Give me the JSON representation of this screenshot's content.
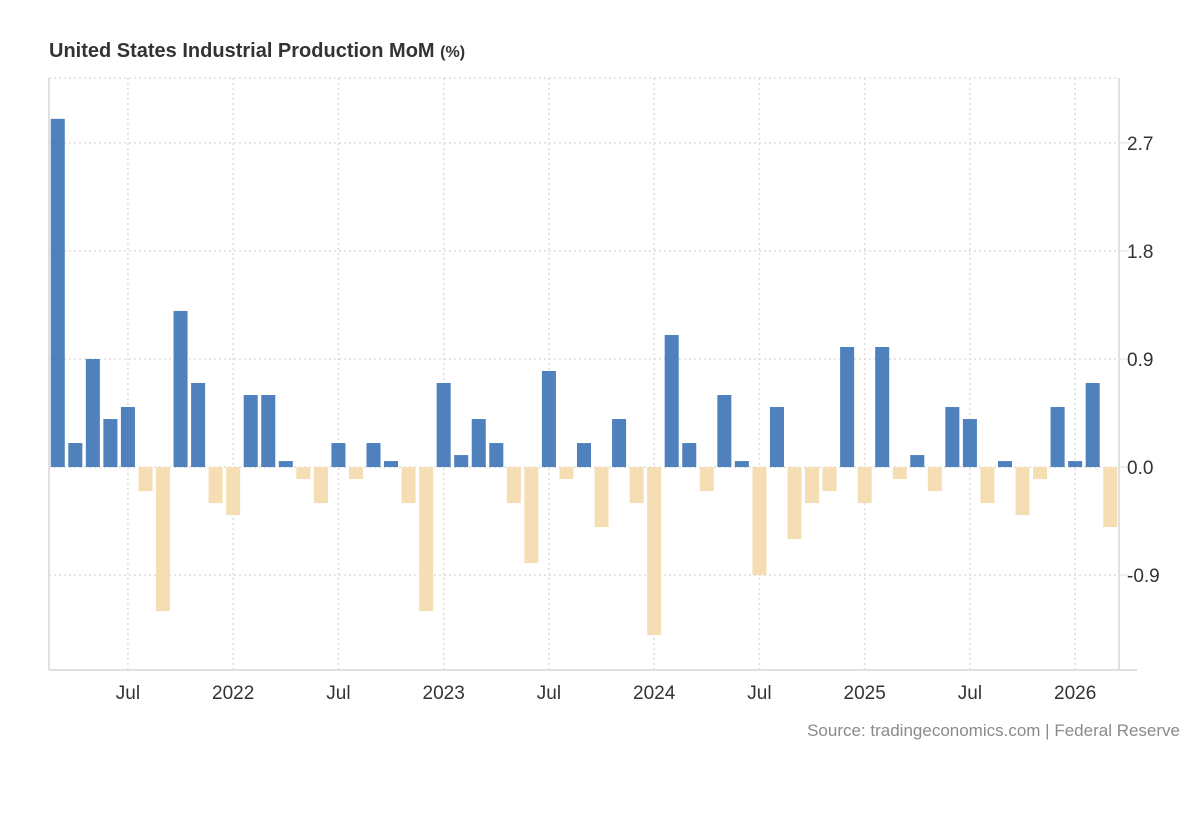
{
  "title": "United States Industrial Production MoM",
  "title_unit": "(%)",
  "source": "Source: tradingeconomics.com | Federal Reserve",
  "colors": {
    "positive": "#4f81bd",
    "negative": "#f5deb3",
    "grid": "#dddddd",
    "axis": "#e0e0e0",
    "text": "#333333"
  },
  "chart_data": {
    "type": "bar",
    "title": "United States Industrial Production MoM (%)",
    "xlabel": "",
    "ylabel": "",
    "ylim": [
      -1.69,
      3.24
    ],
    "y_ticks": [
      2.7,
      1.8,
      0.9,
      0.0,
      -0.9
    ],
    "y_tick_labels": [
      "2.7",
      "1.8",
      "0.9",
      "0.0",
      "-0.9"
    ],
    "y_axis_position": "right",
    "grid": true,
    "legend": "none",
    "x_tick_labels": [
      {
        "month": "2021-07",
        "label": "Jul"
      },
      {
        "month": "2022-01",
        "label": "2022"
      },
      {
        "month": "2022-07",
        "label": "Jul"
      },
      {
        "month": "2023-01",
        "label": "2023"
      },
      {
        "month": "2023-07",
        "label": "Jul"
      },
      {
        "month": "2024-01",
        "label": "2024"
      },
      {
        "month": "2024-07",
        "label": "Jul"
      },
      {
        "month": "2025-01",
        "label": "2025"
      },
      {
        "month": "2025-07",
        "label": "Jul"
      },
      {
        "month": "2026-01",
        "label": "2026"
      }
    ],
    "categories": [
      "2021-03",
      "2021-04",
      "2021-05",
      "2021-06",
      "2021-07",
      "2021-08",
      "2021-09",
      "2021-10",
      "2021-11",
      "2021-12",
      "2022-01",
      "2022-02",
      "2022-03",
      "2022-04",
      "2022-05",
      "2022-06",
      "2022-07",
      "2022-08",
      "2022-09",
      "2022-10",
      "2022-11",
      "2022-12",
      "2023-01",
      "2023-02",
      "2023-03",
      "2023-04",
      "2023-05",
      "2023-06",
      "2023-07",
      "2023-08",
      "2023-09",
      "2023-10",
      "2023-11",
      "2023-12",
      "2024-01",
      "2024-02",
      "2024-03",
      "2024-04",
      "2024-05",
      "2024-06",
      "2024-07",
      "2024-08",
      "2024-09",
      "2024-10",
      "2024-11",
      "2024-12",
      "2025-01",
      "2025-02",
      "2025-03",
      "2025-04",
      "2025-05",
      "2025-06",
      "2025-07",
      "2025-08",
      "2025-09",
      "2025-10",
      "2025-11",
      "2025-12",
      "2026-01",
      "2026-02",
      "2026-03"
    ],
    "values": [
      2.9,
      0.2,
      0.9,
      0.4,
      0.5,
      -0.2,
      -1.2,
      1.3,
      0.7,
      -0.3,
      -0.4,
      0.6,
      0.6,
      0.05,
      -0.1,
      -0.3,
      0.2,
      -0.1,
      0.2,
      0.05,
      -0.3,
      -1.2,
      0.7,
      0.1,
      0.4,
      0.2,
      -0.3,
      -0.8,
      0.8,
      -0.1,
      0.2,
      -0.5,
      0.4,
      -0.3,
      -1.4,
      1.1,
      0.2,
      -0.2,
      0.6,
      0.05,
      -0.9,
      0.5,
      -0.6,
      -0.3,
      -0.2,
      1.0,
      -0.3,
      1.0,
      -0.1,
      0.1,
      -0.2,
      0.5,
      0.4,
      -0.3,
      0.05,
      -0.4,
      -0.1,
      0.5,
      0.05,
      0.7,
      -0.5
    ]
  }
}
